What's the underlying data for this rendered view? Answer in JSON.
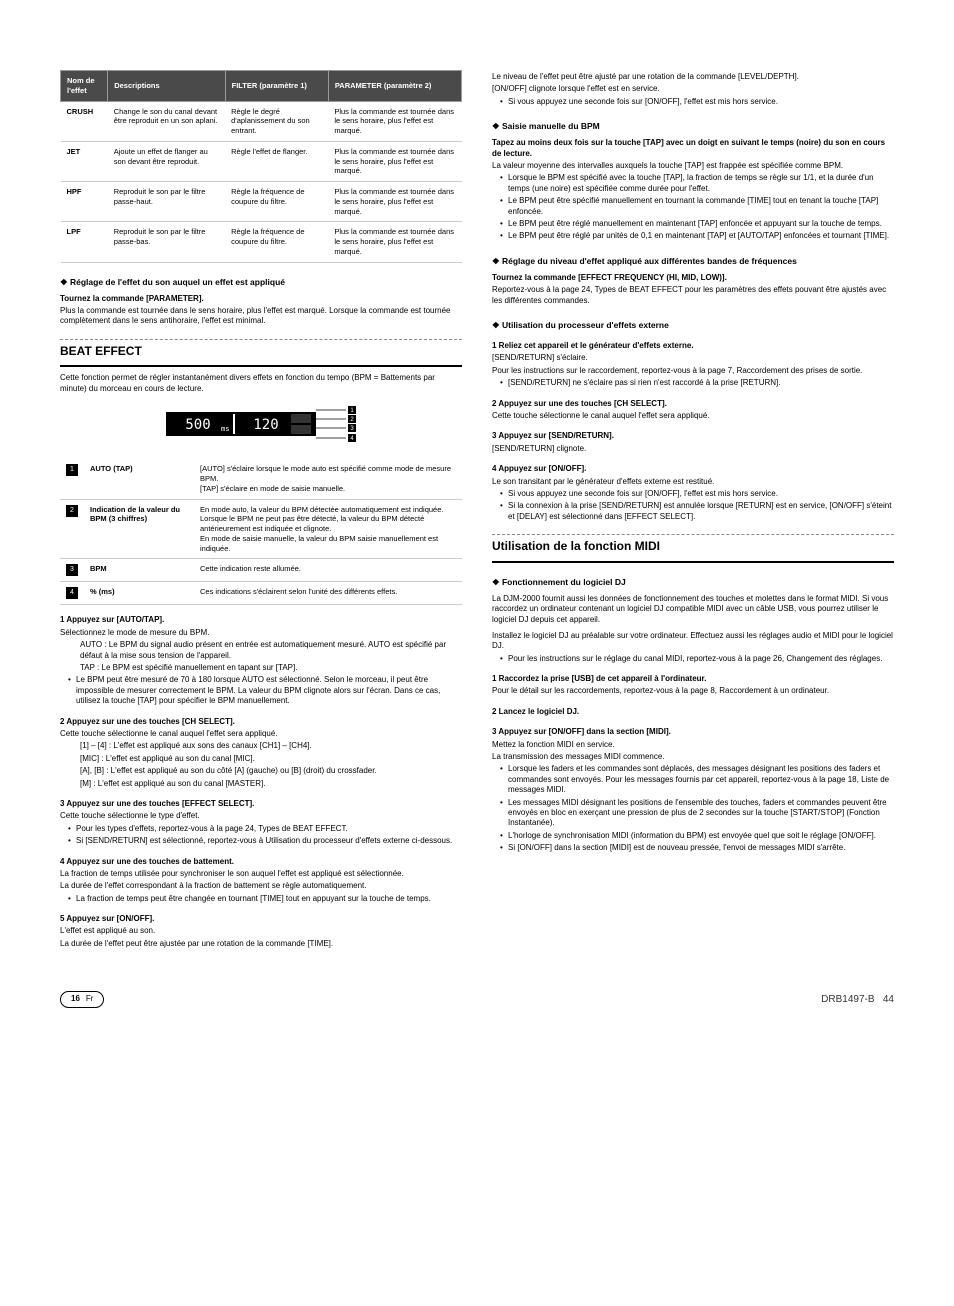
{
  "colors": {
    "header_bg": "#4a4a4a",
    "header_fg": "#ffffff",
    "rule": "#000000",
    "dash": "#888888",
    "border": "#cccccc"
  },
  "table": {
    "headers": [
      "Nom de l'effet",
      "Descriptions",
      "FILTER (paramètre 1)",
      "PARAMETER (paramètre 2)"
    ],
    "rows": [
      {
        "name": "CRUSH",
        "desc": "Change le son du canal devant être reproduit en un son aplani.",
        "p1": "Règle le degré d'aplanissement du son entrant.",
        "p2": "Plus la commande est tournée dans le sens horaire, plus l'effet est marqué."
      },
      {
        "name": "JET",
        "desc": "Ajoute un effet de flanger au son devant être reproduit.",
        "p1": "Règle l'effet de flanger.",
        "p2": "Plus la commande est tournée dans le sens horaire, plus l'effet est marqué."
      },
      {
        "name": "HPF",
        "desc": "Reproduit le son par le filtre passe-haut.",
        "p1": "Règle la fréquence de coupure du filtre.",
        "p2": "Plus la commande est tournée dans le sens horaire, plus l'effet est marqué."
      },
      {
        "name": "LPF",
        "desc": "Reproduit le son par le filtre passe-bas.",
        "p1": "Règle la fréquence de coupure du filtre.",
        "p2": "Plus la commande est tournée dans le sens horaire, plus l'effet est marqué."
      }
    ]
  },
  "left": {
    "h_reglage": "Réglage de l'effet du son auquel un effet est appliqué",
    "turn_param": "Tournez la commande [PARAMETER].",
    "turn_param_p": "Plus la commande est tournée dans le sens horaire, plus l'effet est marqué. Lorsque la commande est tournée complètement dans le sens antihoraire, l'effet est minimal.",
    "beat_title": "BEAT EFFECT",
    "beat_intro": "Cette fonction permet de régler instantanément divers effets en fonction du tempo (BPM = Battements par minute) du morceau en cours de lecture.",
    "display_values": {
      "left": "500",
      "left_unit": "ms",
      "right": "120"
    },
    "legend": [
      {
        "n": "1",
        "label": "AUTO (TAP)",
        "desc": "[AUTO] s'éclaire lorsque le mode auto est spécifié comme mode de mesure BPM.\n[TAP] s'éclaire en mode de saisie manuelle."
      },
      {
        "n": "2",
        "label": "Indication de la valeur du BPM (3 chiffres)",
        "desc": "En mode auto, la valeur du BPM détectée automatiquement est indiquée.\nLorsque le BPM ne peut pas être détecté, la valeur du BPM détecté antérieurement est indiquée et clignote.\nEn mode de saisie manuelle, la valeur du BPM saisie manuellement est indiquée."
      },
      {
        "n": "3",
        "label": "BPM",
        "desc": "Cette indication reste allumée."
      },
      {
        "n": "4",
        "label": "% (ms)",
        "desc": "Ces indications s'éclairent selon l'unité des différents effets."
      }
    ],
    "s1": "1   Appuyez sur [AUTO/TAP].",
    "s1_sub": "Sélectionnez le mode de mesure du BPM.",
    "s1_auto": "AUTO : Le BPM du signal audio présent en entrée est automatiquement mesuré. AUTO est spécifié par défaut à la mise sous tension de l'appareil.",
    "s1_tap": "TAP : Le BPM est spécifié manuellement en tapant sur [TAP].",
    "s1_bullet": "Le BPM peut être mesuré de 70 à 180 lorsque AUTO est sélectionné. Selon le morceau, il peut être impossible de mesurer correctement le BPM. La valeur du BPM clignote alors sur l'écran. Dans ce cas, utilisez la touche [TAP] pour spécifier le BPM manuellement.",
    "s2": "2   Appuyez sur une des touches [CH SELECT].",
    "s2_sub": "Cette touche sélectionne le canal auquel l'effet sera appliqué.",
    "s2_a": "[1] – [4] : L'effet est appliqué aux sons des canaux [CH1] – [CH4].",
    "s2_b": "[MIC] : L'effet est appliqué au son du canal [MIC].",
    "s2_c": "[A], [B] : L'effet est appliqué au son du côté [A] (gauche) ou [B] (droit) du crossfader.",
    "s2_d": "[M] : L'effet est appliqué au son du canal [MASTER].",
    "s3": "3   Appuyez sur une des touches [EFFECT SELECT].",
    "s3_sub": "Cette touche sélectionne le type d'effet.",
    "s3_b1": "Pour les types d'effets, reportez-vous à la page 24, Types de BEAT EFFECT.",
    "s3_b2": "Si [SEND/RETURN] est sélectionné, reportez-vous à Utilisation du processeur d'effets externe ci-dessous.",
    "s4": "4   Appuyez sur une des touches de battement.",
    "s4_p1": "La fraction de temps utilisée pour synchroniser le son auquel l'effet est appliqué est sélectionnée.",
    "s4_p2": "La durée de l'effet correspondant à la fraction de battement se règle automatiquement.",
    "s4_b1": "La fraction de temps peut être changée en tournant [TIME] tout en appuyant sur la touche de temps.",
    "s5": "5   Appuyez sur [ON/OFF].",
    "s5_p1": "L'effet est appliqué au son.",
    "s5_p2": "La durée de l'effet peut être ajustée par une rotation de la commande [TIME]."
  },
  "right": {
    "top1": "Le niveau de l'effet peut être ajusté par une rotation de la commande [LEVEL/DEPTH].",
    "top2": "[ON/OFF] clignote lorsque l'effet est en service.",
    "top_b": "Si vous appuyez une seconde fois sur [ON/OFF], l'effet est mis hors service.",
    "h_saisie": "Saisie manuelle du BPM",
    "saisie_bold": "Tapez au moins deux fois sur la touche [TAP] avec un doigt en suivant le temps (noire) du son en cours de lecture.",
    "saisie_p": "La valeur moyenne des intervalles auxquels la touche [TAP] est frappée est spécifiée comme BPM.",
    "saisie_bullets": [
      "Lorsque le BPM est spécifié avec la touche [TAP], la fraction de temps se règle sur 1/1, et la durée d'un temps (une noire) est spécifiée comme durée pour l'effet.",
      "Le BPM peut être spécifié manuellement en tournant la commande [TIME] tout en tenant la touche [TAP] enfoncée.",
      "Le BPM peut être réglé manuellement en maintenant [TAP] enfoncée et appuyant sur la touche de temps.",
      "Le BPM peut être réglé par unités de 0,1 en maintenant [TAP] et [AUTO/TAP] enfoncées et tournant [TIME]."
    ],
    "h_freq": "Réglage du niveau d'effet appliqué aux différentes bandes de fréquences",
    "freq_bold": "Tournez la commande [EFFECT FREQUENCY (HI, MID, LOW)].",
    "freq_p": "Reportez-vous à la page 24, Types de BEAT EFFECT pour les paramètres des effets pouvant être ajustés avec les différentes commandes.",
    "h_ext": "Utilisation du processeur d'effets externe",
    "ext_s1": "1   Reliez cet appareil et le générateur d'effets externe.",
    "ext_s1_a": "[SEND/RETURN] s'éclaire.",
    "ext_s1_b": "Pour les instructions sur le raccordement, reportez-vous à la page 7, Raccordement des prises de sortie.",
    "ext_s1_c": "[SEND/RETURN] ne s'éclaire pas si rien n'est raccordé à la prise [RETURN].",
    "ext_s2": "2   Appuyez sur une des touches [CH SELECT].",
    "ext_s2_p": "Cette touche sélectionne le canal auquel l'effet sera appliqué.",
    "ext_s3": "3   Appuyez sur [SEND/RETURN].",
    "ext_s3_p": "[SEND/RETURN] clignote.",
    "ext_s4": "4   Appuyez sur [ON/OFF].",
    "ext_s4_p": "Le son transitant par le générateur d'effets externe est restitué.",
    "ext_s4_bullets": [
      "Si vous appuyez une seconde fois sur [ON/OFF], l'effet est mis hors service.",
      "Si la connexion à la prise [SEND/RETURN] est annulée lorsque [RETURN] est en service, [ON/OFF] s'éteint et [DELAY] est sélectionné dans [EFFECT SELECT]."
    ],
    "midi_title": "Utilisation de la fonction MIDI",
    "h_dj": "Fonctionnement du logiciel DJ",
    "dj_p1": "La DJM-2000 fournit aussi les données de fonctionnement des touches et molettes dans le format MIDI. Si vous raccordez un ordinateur contenant un logiciel DJ compatible MIDI avec un câble USB, vous pourrez utiliser le logiciel DJ depuis cet appareil.",
    "dj_p2": "Installez le logiciel DJ au préalable sur votre ordinateur. Effectuez aussi les réglages audio et MIDI pour le logiciel DJ.",
    "dj_b1": "Pour les instructions sur le réglage du canal MIDI, reportez-vous à la page 26, Changement des réglages.",
    "dj_s1": "1   Raccordez la prise [USB] de cet appareil à l'ordinateur.",
    "dj_s1_p": "Pour le détail sur les raccordements, reportez-vous à la page 8, Raccordement à un ordinateur.",
    "dj_s2": "2   Lancez le logiciel DJ.",
    "dj_s3": "3   Appuyez sur [ON/OFF] dans la section [MIDI].",
    "dj_s3_p1": "Mettez la fonction MIDI en service.",
    "dj_s3_p2": "La transmission des messages MIDI commence.",
    "dj_s3_bullets": [
      "Lorsque les faders et les commandes sont déplacés, des messages désignant les positions des faders et commandes sont envoyés. Pour les messages fournis par cet appareil, reportez-vous à la page 18, Liste de messages MIDI.",
      "Les messages MIDI désignant les positions de l'ensemble des touches, faders et commandes peuvent être envoyés en bloc en exerçant une pression de plus de 2 secondes sur la touche [START/STOP] (Fonction Instantanée).",
      "L'horloge de synchronisation MIDI (information du BPM) est envoyée quel que soit le réglage [ON/OFF].",
      "Si [ON/OFF] dans la section [MIDI] est de nouveau pressée, l'envoi de messages MIDI s'arrête."
    ]
  },
  "footer": {
    "page": "16",
    "lang": "Fr",
    "code": "DRB1497-B",
    "sheet": "44"
  }
}
